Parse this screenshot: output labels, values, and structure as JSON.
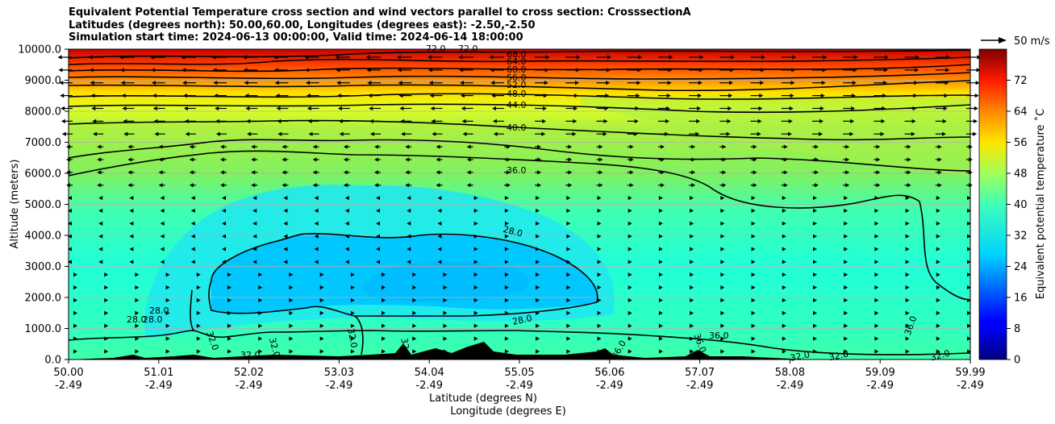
{
  "chart_data": {
    "type": "heatmap",
    "title_lines": [
      "Equivalent Potential Temperature cross section and wind vectors parallel to cross section: CrosssectionA",
      "Latitudes (degrees north): 50.00,60.00, Longitudes (degrees east): -2.50,-2.50",
      "Simulation start time: 2024-06-13 00:00:00, Valid time: 2024-06-14 18:00:00"
    ],
    "ylabel": "Altitude (meters)",
    "xlabel": "Latitude (degrees N)",
    "xlabel2": "Longitude (degrees E)",
    "ylim": [
      0,
      10000
    ],
    "y_ticks": [
      {
        "value": 0,
        "label": "0.0"
      },
      {
        "value": 1000,
        "label": "1000.0"
      },
      {
        "value": 2000,
        "label": "2000.0"
      },
      {
        "value": 3000,
        "label": "3000.0"
      },
      {
        "value": 4000,
        "label": "4000.0"
      },
      {
        "value": 5000,
        "label": "5000.0"
      },
      {
        "value": 6000,
        "label": "6000.0"
      },
      {
        "value": 7000,
        "label": "7000.0"
      },
      {
        "value": 8000,
        "label": "8000.0"
      },
      {
        "value": 9000,
        "label": "9000.0"
      },
      {
        "value": 10000,
        "label": "10000.0"
      }
    ],
    "x_ticks": [
      {
        "value": 0,
        "lat": "50.00",
        "lon": "-2.49"
      },
      {
        "value": 1,
        "lat": "51.01",
        "lon": "-2.49"
      },
      {
        "value": 2,
        "lat": "52.02",
        "lon": "-2.49"
      },
      {
        "value": 3,
        "lat": "53.03",
        "lon": "-2.49"
      },
      {
        "value": 4,
        "lat": "54.04",
        "lon": "-2.49"
      },
      {
        "value": 5,
        "lat": "55.05",
        "lon": "-2.49"
      },
      {
        "value": 6,
        "lat": "56.06",
        "lon": "-2.49"
      },
      {
        "value": 7,
        "lat": "57.07",
        "lon": "-2.49"
      },
      {
        "value": 8,
        "lat": "58.08",
        "lon": "-2.49"
      },
      {
        "value": 9,
        "lat": "59.09",
        "lon": "-2.49"
      },
      {
        "value": 10,
        "lat": "59.99",
        "lon": "-2.49"
      }
    ],
    "colorbar": {
      "label": "Equivalent potential temperature ˚C",
      "range": [
        0,
        80
      ],
      "ticks": [
        "0",
        "8",
        "16",
        "24",
        "32",
        "40",
        "48",
        "56",
        "64",
        "72"
      ]
    },
    "wind_key": {
      "label": "50 m/s"
    },
    "contour_labels": [
      "68.0",
      "64.0",
      "60.0",
      "56.0",
      "52.0",
      "48.0",
      "44.0",
      "40.0",
      "36.0",
      "28.0",
      "28.0",
      "28.0",
      "28.0",
      "28.0",
      "32.0",
      "32.0",
      "32.0",
      "32.0",
      "32.0",
      "32.0",
      "32.0",
      "32.0",
      "36.0",
      "36.0",
      "36.0",
      "36.0",
      "72.0",
      "72.0"
    ],
    "colors": {
      "top_band": "#c80000",
      "upper": "#ffc800",
      "mid": "#a8f040",
      "low": "#30ffc8",
      "cold_pool": "#00d0ff",
      "cold_core": "#00c0ff",
      "terrain": "#000000"
    }
  }
}
